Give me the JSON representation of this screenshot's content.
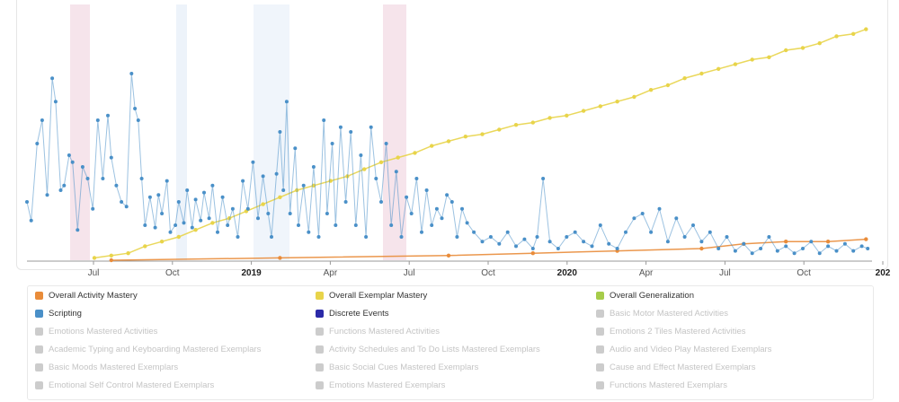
{
  "chart_data": {
    "type": "line",
    "x_tick_labels": [
      {
        "label": "Jul",
        "year": false
      },
      {
        "label": "Oct",
        "year": false
      },
      {
        "label": "2019",
        "year": true
      },
      {
        "label": "Apr",
        "year": false
      },
      {
        "label": "Jul",
        "year": false
      },
      {
        "label": "Oct",
        "year": false
      },
      {
        "label": "2020",
        "year": true
      },
      {
        "label": "Apr",
        "year": false
      },
      {
        "label": "Jul",
        "year": false
      },
      {
        "label": "Oct",
        "year": false
      },
      {
        "label": "202",
        "year": true
      }
    ],
    "series": [
      {
        "name": "Overall Exemplar Mastery",
        "color": "#e8d44a",
        "points": [
          [
            0.08,
            0.01
          ],
          [
            0.1,
            0.02
          ],
          [
            0.12,
            0.03
          ],
          [
            0.14,
            0.06
          ],
          [
            0.16,
            0.08
          ],
          [
            0.18,
            0.1
          ],
          [
            0.2,
            0.13
          ],
          [
            0.22,
            0.16
          ],
          [
            0.24,
            0.18
          ],
          [
            0.26,
            0.21
          ],
          [
            0.28,
            0.24
          ],
          [
            0.3,
            0.27
          ],
          [
            0.32,
            0.3
          ],
          [
            0.34,
            0.32
          ],
          [
            0.36,
            0.34
          ],
          [
            0.38,
            0.36
          ],
          [
            0.4,
            0.39
          ],
          [
            0.42,
            0.42
          ],
          [
            0.44,
            0.44
          ],
          [
            0.46,
            0.46
          ],
          [
            0.48,
            0.49
          ],
          [
            0.5,
            0.51
          ],
          [
            0.52,
            0.53
          ],
          [
            0.54,
            0.54
          ],
          [
            0.56,
            0.56
          ],
          [
            0.58,
            0.58
          ],
          [
            0.6,
            0.59
          ],
          [
            0.62,
            0.61
          ],
          [
            0.64,
            0.62
          ],
          [
            0.66,
            0.64
          ],
          [
            0.68,
            0.66
          ],
          [
            0.7,
            0.68
          ],
          [
            0.72,
            0.7
          ],
          [
            0.74,
            0.73
          ],
          [
            0.76,
            0.75
          ],
          [
            0.78,
            0.78
          ],
          [
            0.8,
            0.8
          ],
          [
            0.82,
            0.82
          ],
          [
            0.84,
            0.84
          ],
          [
            0.86,
            0.86
          ],
          [
            0.88,
            0.87
          ],
          [
            0.9,
            0.9
          ],
          [
            0.92,
            0.91
          ],
          [
            0.94,
            0.93
          ],
          [
            0.96,
            0.96
          ],
          [
            0.98,
            0.97
          ],
          [
            0.995,
            0.99
          ]
        ]
      },
      {
        "name": "Overall Activity Mastery",
        "color": "#e98c3a",
        "points": [
          [
            0.1,
            0.0
          ],
          [
            0.3,
            0.01
          ],
          [
            0.5,
            0.02
          ],
          [
            0.6,
            0.03
          ],
          [
            0.7,
            0.04
          ],
          [
            0.8,
            0.05
          ],
          [
            0.85,
            0.07
          ],
          [
            0.9,
            0.08
          ],
          [
            0.95,
            0.08
          ],
          [
            0.995,
            0.09
          ]
        ]
      },
      {
        "name": "Scripting",
        "color": "#4a90c8",
        "points": [
          [
            0.0,
            0.25
          ],
          [
            0.005,
            0.17
          ],
          [
            0.012,
            0.5
          ],
          [
            0.018,
            0.6
          ],
          [
            0.024,
            0.28
          ],
          [
            0.03,
            0.78
          ],
          [
            0.034,
            0.68
          ],
          [
            0.04,
            0.3
          ],
          [
            0.044,
            0.32
          ],
          [
            0.05,
            0.45
          ],
          [
            0.054,
            0.42
          ],
          [
            0.06,
            0.13
          ],
          [
            0.066,
            0.4
          ],
          [
            0.072,
            0.35
          ],
          [
            0.078,
            0.22
          ],
          [
            0.084,
            0.6
          ],
          [
            0.09,
            0.35
          ],
          [
            0.096,
            0.62
          ],
          [
            0.1,
            0.44
          ],
          [
            0.106,
            0.32
          ],
          [
            0.112,
            0.25
          ],
          [
            0.118,
            0.23
          ],
          [
            0.124,
            0.8
          ],
          [
            0.128,
            0.65
          ],
          [
            0.132,
            0.6
          ],
          [
            0.136,
            0.35
          ],
          [
            0.14,
            0.15
          ],
          [
            0.146,
            0.27
          ],
          [
            0.152,
            0.14
          ],
          [
            0.156,
            0.28
          ],
          [
            0.16,
            0.2
          ],
          [
            0.166,
            0.34
          ],
          [
            0.17,
            0.12
          ],
          [
            0.176,
            0.15
          ],
          [
            0.18,
            0.25
          ],
          [
            0.186,
            0.16
          ],
          [
            0.19,
            0.3
          ],
          [
            0.196,
            0.14
          ],
          [
            0.2,
            0.26
          ],
          [
            0.206,
            0.17
          ],
          [
            0.21,
            0.29
          ],
          [
            0.216,
            0.18
          ],
          [
            0.22,
            0.32
          ],
          [
            0.226,
            0.12
          ],
          [
            0.232,
            0.27
          ],
          [
            0.238,
            0.15
          ],
          [
            0.244,
            0.22
          ],
          [
            0.25,
            0.1
          ],
          [
            0.256,
            0.34
          ],
          [
            0.262,
            0.22
          ],
          [
            0.268,
            0.42
          ],
          [
            0.274,
            0.18
          ],
          [
            0.28,
            0.36
          ],
          [
            0.286,
            0.2
          ],
          [
            0.29,
            0.1
          ],
          [
            0.296,
            0.37
          ],
          [
            0.3,
            0.55
          ],
          [
            0.304,
            0.3
          ],
          [
            0.308,
            0.68
          ],
          [
            0.312,
            0.2
          ],
          [
            0.318,
            0.48
          ],
          [
            0.322,
            0.15
          ],
          [
            0.328,
            0.32
          ],
          [
            0.334,
            0.12
          ],
          [
            0.34,
            0.4
          ],
          [
            0.346,
            0.1
          ],
          [
            0.352,
            0.6
          ],
          [
            0.356,
            0.2
          ],
          [
            0.362,
            0.5
          ],
          [
            0.366,
            0.15
          ],
          [
            0.372,
            0.57
          ],
          [
            0.378,
            0.25
          ],
          [
            0.384,
            0.55
          ],
          [
            0.39,
            0.15
          ],
          [
            0.396,
            0.45
          ],
          [
            0.402,
            0.1
          ],
          [
            0.408,
            0.57
          ],
          [
            0.414,
            0.35
          ],
          [
            0.42,
            0.25
          ],
          [
            0.426,
            0.5
          ],
          [
            0.432,
            0.15
          ],
          [
            0.438,
            0.38
          ],
          [
            0.444,
            0.1
          ],
          [
            0.45,
            0.27
          ],
          [
            0.456,
            0.2
          ],
          [
            0.462,
            0.35
          ],
          [
            0.468,
            0.12
          ],
          [
            0.474,
            0.3
          ],
          [
            0.48,
            0.15
          ],
          [
            0.486,
            0.22
          ],
          [
            0.492,
            0.18
          ],
          [
            0.498,
            0.28
          ],
          [
            0.504,
            0.25
          ],
          [
            0.51,
            0.1
          ],
          [
            0.516,
            0.22
          ],
          [
            0.522,
            0.16
          ],
          [
            0.53,
            0.12
          ],
          [
            0.54,
            0.08
          ],
          [
            0.55,
            0.1
          ],
          [
            0.56,
            0.07
          ],
          [
            0.57,
            0.12
          ],
          [
            0.58,
            0.06
          ],
          [
            0.59,
            0.09
          ],
          [
            0.6,
            0.05
          ],
          [
            0.605,
            0.1
          ],
          [
            0.612,
            0.35
          ],
          [
            0.62,
            0.08
          ],
          [
            0.63,
            0.05
          ],
          [
            0.64,
            0.1
          ],
          [
            0.65,
            0.12
          ],
          [
            0.66,
            0.08
          ],
          [
            0.67,
            0.06
          ],
          [
            0.68,
            0.15
          ],
          [
            0.69,
            0.07
          ],
          [
            0.7,
            0.05
          ],
          [
            0.71,
            0.12
          ],
          [
            0.72,
            0.18
          ],
          [
            0.73,
            0.2
          ],
          [
            0.74,
            0.12
          ],
          [
            0.75,
            0.22
          ],
          [
            0.76,
            0.08
          ],
          [
            0.77,
            0.18
          ],
          [
            0.78,
            0.1
          ],
          [
            0.79,
            0.15
          ],
          [
            0.8,
            0.08
          ],
          [
            0.81,
            0.12
          ],
          [
            0.82,
            0.05
          ],
          [
            0.83,
            0.1
          ],
          [
            0.84,
            0.04
          ],
          [
            0.85,
            0.07
          ],
          [
            0.86,
            0.03
          ],
          [
            0.87,
            0.05
          ],
          [
            0.88,
            0.1
          ],
          [
            0.89,
            0.04
          ],
          [
            0.9,
            0.06
          ],
          [
            0.91,
            0.03
          ],
          [
            0.92,
            0.05
          ],
          [
            0.93,
            0.08
          ],
          [
            0.94,
            0.03
          ],
          [
            0.95,
            0.06
          ],
          [
            0.96,
            0.04
          ],
          [
            0.97,
            0.07
          ],
          [
            0.98,
            0.04
          ],
          [
            0.99,
            0.06
          ],
          [
            0.997,
            0.05
          ]
        ]
      }
    ],
    "legend": [
      {
        "label": "Overall Activity Mastery",
        "color": "#e98c3a",
        "active": true
      },
      {
        "label": "Overall Exemplar Mastery",
        "color": "#e8d44a",
        "active": true
      },
      {
        "label": "Overall Generalization",
        "color": "#a6cc4a",
        "active": true
      },
      {
        "label": "Scripting",
        "color": "#4a90c8",
        "active": true
      },
      {
        "label": "Discrete Events",
        "color": "#2b2aa8",
        "active": true
      },
      {
        "label": "Basic Motor Mastered Activities",
        "color": "#cccccc",
        "active": false
      },
      {
        "label": "Emotions Mastered Activities",
        "color": "#cccccc",
        "active": false
      },
      {
        "label": "Functions Mastered Activities",
        "color": "#cccccc",
        "active": false
      },
      {
        "label": "Emotions 2 Tiles Mastered Activities",
        "color": "#cccccc",
        "active": false
      },
      {
        "label": "Academic Typing and Keyboarding Mastered Exemplars",
        "color": "#cccccc",
        "active": false
      },
      {
        "label": "Activity Schedules and To Do Lists Mastered Exemplars",
        "color": "#cccccc",
        "active": false
      },
      {
        "label": "Audio and Video Play Mastered Exemplars",
        "color": "#cccccc",
        "active": false
      },
      {
        "label": "Basic Moods Mastered Exemplars",
        "color": "#cccccc",
        "active": false
      },
      {
        "label": "Basic Social Cues Mastered Exemplars",
        "color": "#cccccc",
        "active": false
      },
      {
        "label": "Cause and Effect Mastered Exemplars",
        "color": "#cccccc",
        "active": false
      },
      {
        "label": "Emotional Self Control Mastered Exemplars",
        "color": "#cccccc",
        "active": false
      },
      {
        "label": "Emotions Mastered Exemplars",
        "color": "#cccccc",
        "active": false
      },
      {
        "label": "Functions Mastered Exemplars",
        "color": "#cccccc",
        "active": false
      }
    ]
  }
}
